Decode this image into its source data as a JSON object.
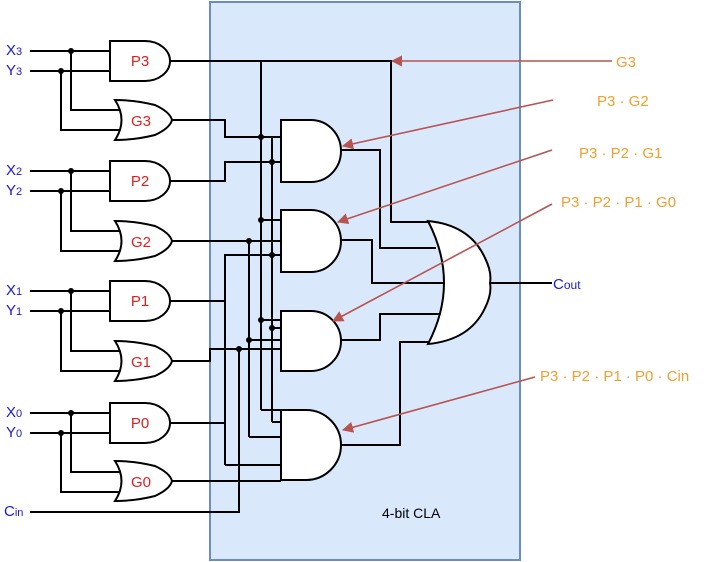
{
  "block": {
    "label": "4-bit CLA",
    "fill": "#dae8fc",
    "stroke": "#6c8ebf"
  },
  "colors": {
    "input": "#1a1acc",
    "gate_label": "#e02020",
    "term": "#f0a030",
    "arrow": "#b85450"
  },
  "inputs": {
    "x3": {
      "main": "X",
      "sub": "3"
    },
    "y3": {
      "main": "Y",
      "sub": "3"
    },
    "x2": {
      "main": "X",
      "sub": "2"
    },
    "y2": {
      "main": "Y",
      "sub": "2"
    },
    "x1": {
      "main": "X",
      "sub": "1"
    },
    "y1": {
      "main": "Y",
      "sub": "1"
    },
    "x0": {
      "main": "X",
      "sub": "0"
    },
    "y0": {
      "main": "Y",
      "sub": "0"
    },
    "cin": {
      "main": "C",
      "sub": "in"
    }
  },
  "output": {
    "main": "C",
    "sub": "out"
  },
  "gates": {
    "p3": "P3",
    "g3": "G3",
    "p2": "P2",
    "g2": "G2",
    "p1": "P1",
    "g1": "G1",
    "p0": "P0",
    "g0": "G0"
  },
  "terms": {
    "t1": "G3",
    "t2": "P3 · G2",
    "t3": "P3 · P2 · G1",
    "t4": "P3 · P2 · P1 · G0",
    "t5": "P3 · P2 · P1 · P0 · Cin"
  }
}
